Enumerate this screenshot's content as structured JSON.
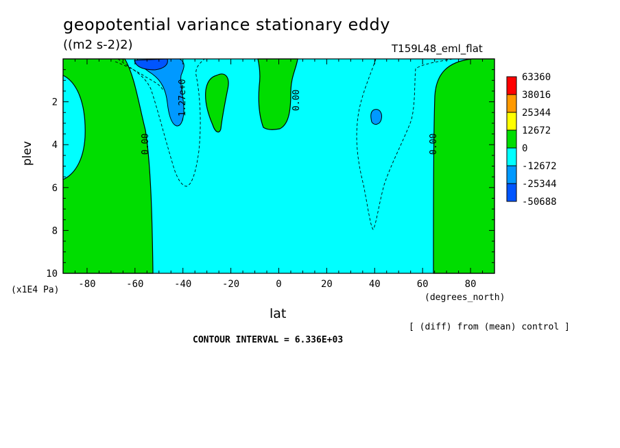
{
  "title": "geopotential variance stationary eddy",
  "units": "((m2 s-2)2)",
  "run_label": "T159L48_eml_flat",
  "ylabel": "plev",
  "yunit": "(x1E4 Pa)",
  "xlabel": "lat",
  "xunit": "(degrees_north)",
  "diff_note": "[ (diff) from (mean) control ]",
  "contour_interval": "CONTOUR INTERVAL = 6.336E+03",
  "colors": {
    "c63360": "#ff0000",
    "c38016": "#ff9900",
    "c25344": "#ffff00",
    "c12672": "#00dd00",
    "c0": "#00ffff",
    "cm12672": "#0099ff",
    "cm25344": "#0055ff"
  },
  "chart_data": {
    "type": "contour",
    "x_axis": {
      "range": [
        -90,
        90
      ],
      "ticks": [
        -80,
        -60,
        -40,
        -20,
        0,
        20,
        40,
        60,
        80
      ],
      "label": "lat"
    },
    "y_axis": {
      "range": [
        0,
        10
      ],
      "ticks": [
        2,
        4,
        6,
        8,
        10
      ],
      "inverted": true,
      "label": "plev"
    },
    "contour_labels": [
      {
        "text": "0.00",
        "lat": -53,
        "plev": 4.0
      },
      {
        "text": "-1.27e+0",
        "lat": -41,
        "plev": 2.2
      },
      {
        "text": "0.00",
        "lat": 7,
        "plev": 2.0
      },
      {
        "text": "0.00",
        "lat": 64,
        "plev": 4.0
      }
    ],
    "colorbar_levels": [
      "63360",
      "38016",
      "25344",
      "12672",
      "0",
      "-12672",
      "-25344",
      "-50688"
    ]
  }
}
